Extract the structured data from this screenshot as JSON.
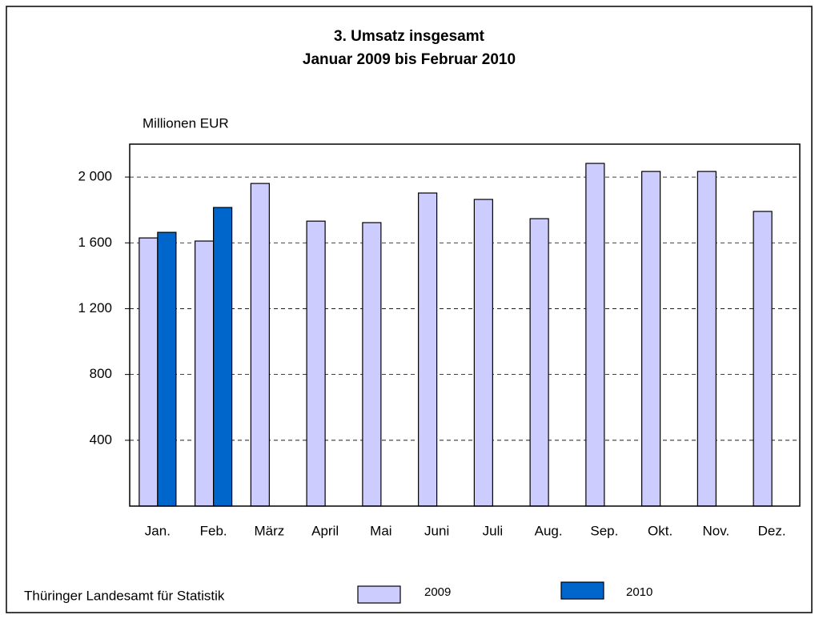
{
  "chart_data": {
    "type": "bar",
    "title": [
      "3. Umsatz insgesamt",
      "Januar 2009 bis Februar 2010"
    ],
    "y_label": "Millionen EUR",
    "source": "Thüringer Landesamt für Statistik",
    "categories": [
      "Jan.",
      "Feb.",
      "März",
      "April",
      "Mai",
      "Juni",
      "Juli",
      "Aug.",
      "Sep.",
      "Okt.",
      "Nov.",
      "Dez."
    ],
    "series": [
      {
        "name": "2009",
        "color": "#ccccff",
        "values": [
          1630,
          1611,
          1961,
          1732,
          1723,
          1903,
          1864,
          1747,
          2083,
          2034,
          2034,
          1791
        ]
      },
      {
        "name": "2010",
        "color": "#0066cc",
        "values": [
          1664,
          1815,
          null,
          null,
          null,
          null,
          null,
          null,
          null,
          null,
          null,
          null
        ]
      }
    ],
    "ylim": [
      0,
      2200
    ],
    "yticks": [
      400,
      800,
      {
        "value": 1200,
        "label": "1 200"
      },
      {
        "value": 1600,
        "label": "1 600"
      },
      {
        "value": 2000,
        "label": "2 000"
      }
    ],
    "grid": true
  }
}
